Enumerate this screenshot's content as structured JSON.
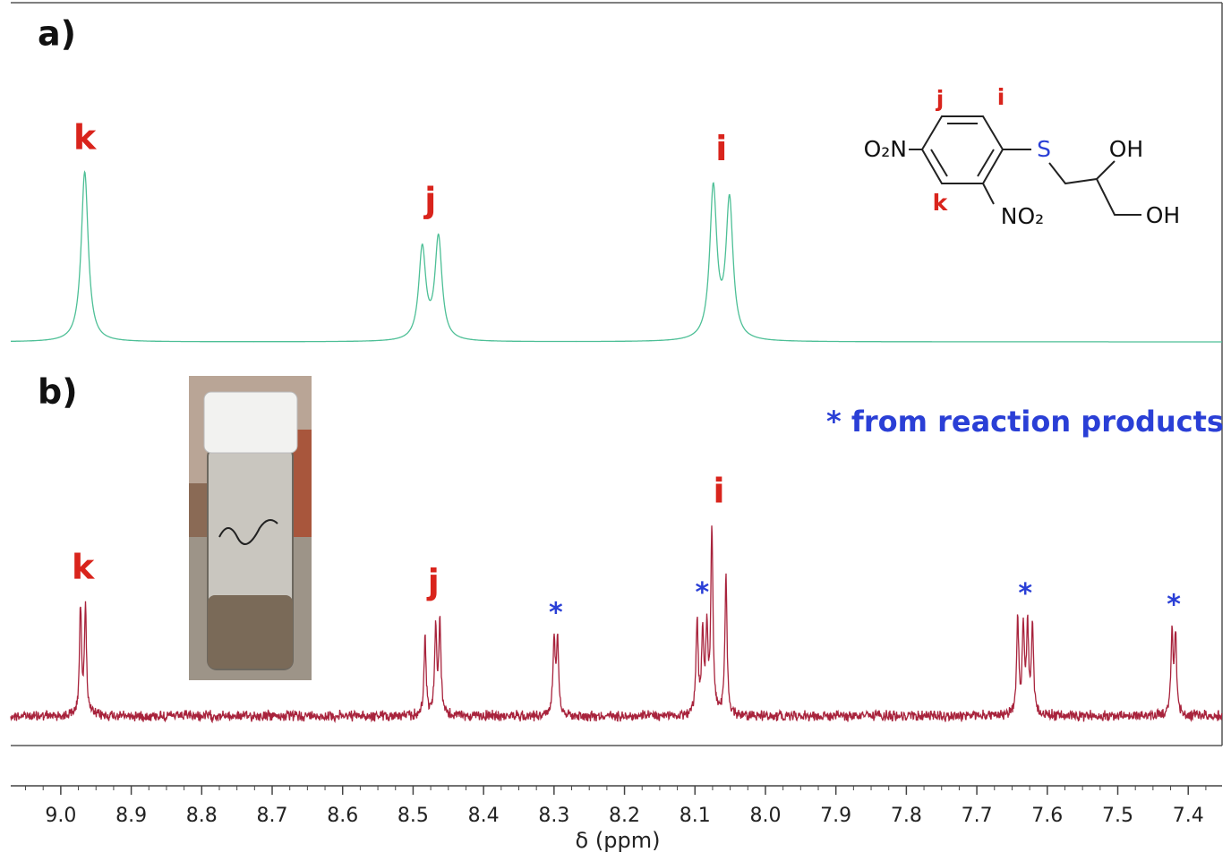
{
  "chart_data": {
    "type": "nmr",
    "x_label": "δ (ppm)",
    "xlim": [
      9.071,
      7.352
    ],
    "xticks": [
      {
        "value": 9,
        "label": "9.0"
      },
      8.9,
      8.8,
      8.7,
      8.6,
      8.5,
      8.4,
      8.3,
      8.2,
      8.1,
      {
        "value": 8,
        "label": "8.0"
      },
      7.9,
      7.8,
      7.7,
      7.6,
      7.5,
      7.4
    ],
    "annotation": "* from reaction products",
    "spectra": [
      {
        "panel_label": "a)",
        "color": "#4dbf96",
        "linewidth": 0.006,
        "ylim": [
          0,
          230
        ],
        "noise": false,
        "groups": [
          {
            "label": "k",
            "label_color": "#d9241c",
            "peaks": [
              {
                "ppm": 8.966,
                "height": 190
              }
            ]
          },
          {
            "label": "j",
            "label_color": "#d9241c",
            "peaks": [
              {
                "ppm": 8.487,
                "height": 102
              },
              {
                "ppm": 8.464,
                "height": 114
              }
            ]
          },
          {
            "label": "i",
            "label_color": "#d9241c",
            "peaks": [
              {
                "ppm": 8.074,
                "height": 168
              },
              {
                "ppm": 8.051,
                "height": 154
              }
            ]
          }
        ]
      },
      {
        "panel_label": "b)",
        "color": "#a8233c",
        "linewidth": 0.0018,
        "ylim": [
          0,
          230
        ],
        "noise": true,
        "groups": [
          {
            "label": "k",
            "label_color": "#d9241c",
            "peaks": [
              {
                "ppm": 8.972,
                "height": 118
              },
              {
                "ppm": 8.965,
                "height": 118
              }
            ]
          },
          {
            "label": "j",
            "label_color": "#d9241c",
            "peaks": [
              {
                "ppm": 8.483,
                "height": 88
              },
              {
                "ppm": 8.468,
                "height": 95
              },
              {
                "ppm": 8.462,
                "height": 102
              }
            ]
          },
          {
            "label": "*",
            "label_color": "#2a3fd6",
            "peaks": [
              {
                "ppm": 8.3,
                "height": 85
              },
              {
                "ppm": 8.295,
                "height": 88
              }
            ]
          },
          {
            "label": "*",
            "label_color": "#2a3fd6",
            "peaks": [
              {
                "ppm": 8.097,
                "height": 103
              },
              {
                "ppm": 8.089,
                "height": 90
              },
              {
                "ppm": 8.083,
                "height": 90
              }
            ]
          },
          {
            "label": "i",
            "label_color": "#d9241c",
            "peaks": [
              {
                "ppm": 8.076,
                "height": 208
              },
              {
                "ppm": 8.056,
                "height": 155
              }
            ]
          },
          {
            "label": "*",
            "label_color": "#2a3fd6",
            "peaks": [
              {
                "ppm": 7.642,
                "height": 108
              },
              {
                "ppm": 7.634,
                "height": 95
              },
              {
                "ppm": 7.628,
                "height": 95
              },
              {
                "ppm": 7.621,
                "height": 102
              }
            ]
          },
          {
            "label": "*",
            "label_color": "#2a3fd6",
            "peaks": [
              {
                "ppm": 7.423,
                "height": 90
              },
              {
                "ppm": 7.418,
                "height": 88
              }
            ]
          }
        ]
      }
    ]
  },
  "molecule": {
    "proton_labels": [
      "j",
      "i",
      "k"
    ],
    "groups": [
      "O₂N",
      "S",
      "OH",
      "OH",
      "NO₂"
    ]
  }
}
